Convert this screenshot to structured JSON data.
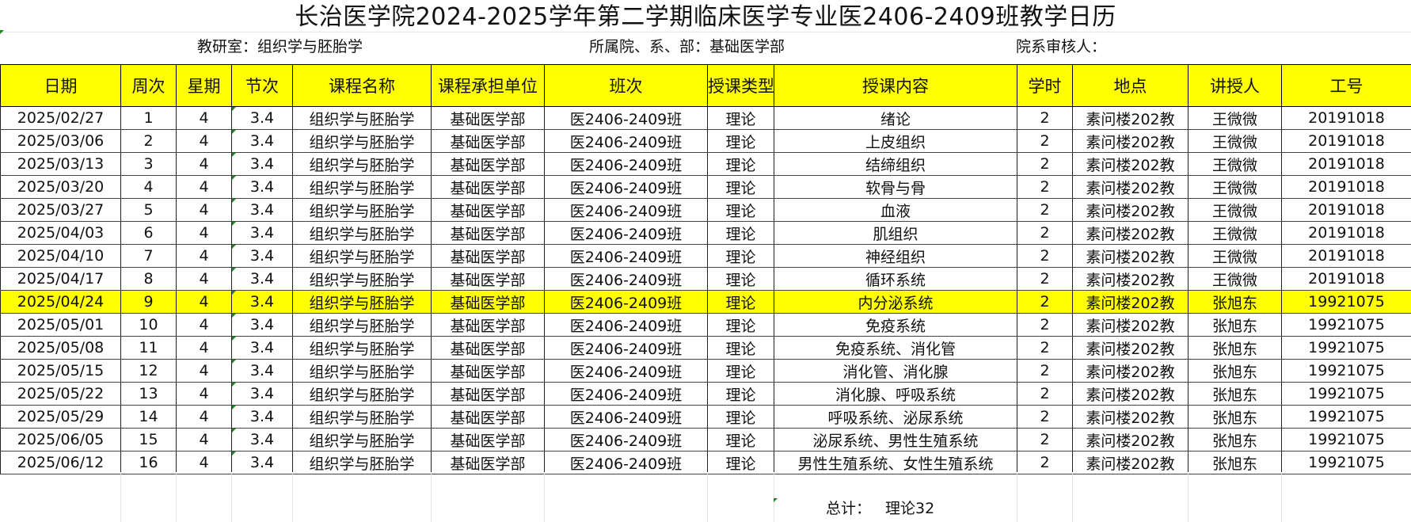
{
  "title": "长治医学院2024-2025学年第二学期临床医学专业医2406-2409班教学日历",
  "meta": {
    "office": "教研室：组织学与胚胎学",
    "department": "所属院、系、部：基础医学部",
    "reviewer": "院系审核人："
  },
  "columns": [
    "日期",
    "周次",
    "星期",
    "节次",
    "课程名称",
    "课程承担单位",
    "班次",
    "授课类型",
    "授课内容",
    "学时",
    "地点",
    "讲授人",
    "工号"
  ],
  "rows": [
    [
      "2025/02/27",
      "1",
      "4",
      "3.4",
      "组织学与胚胎学",
      "基础医学部",
      "医2406-2409班",
      "理论",
      "绪论",
      "2",
      "素问楼202教",
      "王微微",
      "20191018"
    ],
    [
      "2025/03/06",
      "2",
      "4",
      "3.4",
      "组织学与胚胎学",
      "基础医学部",
      "医2406-2409班",
      "理论",
      "上皮组织",
      "2",
      "素问楼202教",
      "王微微",
      "20191018"
    ],
    [
      "2025/03/13",
      "3",
      "4",
      "3.4",
      "组织学与胚胎学",
      "基础医学部",
      "医2406-2409班",
      "理论",
      "结缔组织",
      "2",
      "素问楼202教",
      "王微微",
      "20191018"
    ],
    [
      "2025/03/20",
      "4",
      "4",
      "3.4",
      "组织学与胚胎学",
      "基础医学部",
      "医2406-2409班",
      "理论",
      "软骨与骨",
      "2",
      "素问楼202教",
      "王微微",
      "20191018"
    ],
    [
      "2025/03/27",
      "5",
      "4",
      "3.4",
      "组织学与胚胎学",
      "基础医学部",
      "医2406-2409班",
      "理论",
      "血液",
      "2",
      "素问楼202教",
      "王微微",
      "20191018"
    ],
    [
      "2025/04/03",
      "6",
      "4",
      "3.4",
      "组织学与胚胎学",
      "基础医学部",
      "医2406-2409班",
      "理论",
      "肌组织",
      "2",
      "素问楼202教",
      "王微微",
      "20191018"
    ],
    [
      "2025/04/10",
      "7",
      "4",
      "3.4",
      "组织学与胚胎学",
      "基础医学部",
      "医2406-2409班",
      "理论",
      "神经组织",
      "2",
      "素问楼202教",
      "王微微",
      "20191018"
    ],
    [
      "2025/04/17",
      "8",
      "4",
      "3.4",
      "组织学与胚胎学",
      "基础医学部",
      "医2406-2409班",
      "理论",
      "循环系统",
      "2",
      "素问楼202教",
      "王微微",
      "20191018"
    ],
    [
      "2025/04/24",
      "9",
      "4",
      "3.4",
      "组织学与胚胎学",
      "基础医学部",
      "医2406-2409班",
      "理论",
      "内分泌系统",
      "2",
      "素问楼202教",
      "张旭东",
      "19921075"
    ],
    [
      "2025/05/01",
      "10",
      "4",
      "3.4",
      "组织学与胚胎学",
      "基础医学部",
      "医2406-2409班",
      "理论",
      "免疫系统",
      "2",
      "素问楼202教",
      "张旭东",
      "19921075"
    ],
    [
      "2025/05/08",
      "11",
      "4",
      "3.4",
      "组织学与胚胎学",
      "基础医学部",
      "医2406-2409班",
      "理论",
      "免疫系统、消化管",
      "2",
      "素问楼202教",
      "张旭东",
      "19921075"
    ],
    [
      "2025/05/15",
      "12",
      "4",
      "3.4",
      "组织学与胚胎学",
      "基础医学部",
      "医2406-2409班",
      "理论",
      "消化管、消化腺",
      "2",
      "素问楼202教",
      "张旭东",
      "19921075"
    ],
    [
      "2025/05/22",
      "13",
      "4",
      "3.4",
      "组织学与胚胎学",
      "基础医学部",
      "医2406-2409班",
      "理论",
      "消化腺、呼吸系统",
      "2",
      "素问楼202教",
      "张旭东",
      "19921075"
    ],
    [
      "2025/05/29",
      "14",
      "4",
      "3.4",
      "组织学与胚胎学",
      "基础医学部",
      "医2406-2409班",
      "理论",
      "呼吸系统、泌尿系统",
      "2",
      "素问楼202教",
      "张旭东",
      "19921075"
    ],
    [
      "2025/06/05",
      "15",
      "4",
      "3.4",
      "组织学与胚胎学",
      "基础医学部",
      "医2406-2409班",
      "理论",
      "泌尿系统、男性生殖系统",
      "2",
      "素问楼202教",
      "张旭东",
      "19921075"
    ],
    [
      "2025/06/12",
      "16",
      "4",
      "3.4",
      "组织学与胚胎学",
      "基础医学部",
      "医2406-2409班",
      "理论",
      "男性生殖系统、女性生殖系统",
      "2",
      "素问楼202教",
      "张旭东",
      "19921075"
    ]
  ],
  "highlight_row": 8,
  "highlight_color": "#ffff00",
  "header_color": "#ffff00",
  "footer": {
    "total_label": "总计：",
    "total_value": "理论32"
  }
}
